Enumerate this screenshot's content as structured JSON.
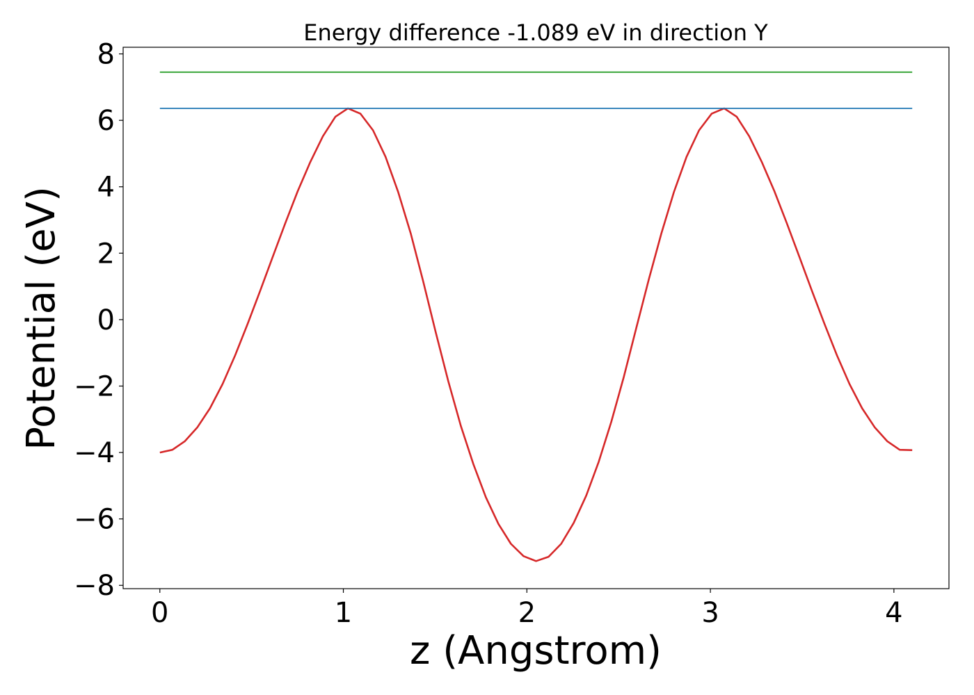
{
  "chart_data": {
    "type": "line",
    "title": "Energy difference -1.089 eV in direction Y",
    "xlabel": "z (Angstrom)",
    "ylabel": "Potential (eV)",
    "xlim": [
      -0.2,
      4.3
    ],
    "ylim": [
      -8.1,
      8.2
    ],
    "xticks": [
      0,
      1,
      2,
      3,
      4
    ],
    "yticks": [
      -8,
      -6,
      -4,
      -2,
      0,
      2,
      4,
      6,
      8
    ],
    "xtick_labels": [
      "0",
      "1",
      "2",
      "3",
      "4"
    ],
    "ytick_labels": [
      "−8",
      "−6",
      "−4",
      "−2",
      "0",
      "2",
      "4",
      "6",
      "8"
    ],
    "grid": false,
    "colors": {
      "potential": "#d62728",
      "barrier_max": "#1f77b4",
      "upper_level": "#2ca02c"
    },
    "series": [
      {
        "key": "potential",
        "x": [
          0.0,
          0.0683,
          0.1367,
          0.205,
          0.2733,
          0.3417,
          0.41,
          0.4783,
          0.5467,
          0.615,
          0.6833,
          0.7517,
          0.82,
          0.8883,
          0.9567,
          1.025,
          1.0933,
          1.1617,
          1.23,
          1.2983,
          1.3667,
          1.435,
          1.5033,
          1.5717,
          1.64,
          1.7083,
          1.7767,
          1.845,
          1.9133,
          1.9817,
          2.05,
          2.1183,
          2.1867,
          2.255,
          2.3233,
          2.3917,
          2.46,
          2.5283,
          2.5967,
          2.665,
          2.7333,
          2.8017,
          2.87,
          2.9383,
          3.0067,
          3.075,
          3.1433,
          3.2117,
          3.28,
          3.3483,
          3.4167,
          3.485,
          3.5533,
          3.6217,
          3.69,
          3.7583,
          3.8267,
          3.895,
          3.9633,
          4.0317,
          4.1
        ],
        "y": [
          -4.0,
          -3.92,
          -3.66,
          -3.24,
          -2.67,
          -1.94,
          -1.08,
          -0.13,
          0.87,
          1.89,
          2.9,
          3.87,
          4.75,
          5.52,
          6.11,
          6.36,
          6.2,
          5.7,
          4.9,
          3.85,
          2.6,
          1.15,
          -0.38,
          -1.85,
          -3.2,
          -4.35,
          -5.35,
          -6.15,
          -6.75,
          -7.12,
          -7.27,
          -7.14,
          -6.75,
          -6.12,
          -5.3,
          -4.28,
          -3.08,
          -1.72,
          -0.24,
          1.22,
          2.6,
          3.85,
          4.9,
          5.7,
          6.2,
          6.36,
          6.11,
          5.52,
          4.75,
          3.87,
          2.9,
          1.89,
          0.87,
          -0.13,
          -1.08,
          -1.94,
          -2.67,
          -3.24,
          -3.66,
          -3.92,
          -3.93
        ]
      },
      {
        "key": "barrier_max",
        "x": [
          0.0,
          4.1
        ],
        "y": [
          6.36,
          6.36
        ]
      },
      {
        "key": "upper_level",
        "x": [
          0.0,
          4.1
        ],
        "y": [
          7.45,
          7.45
        ]
      }
    ]
  }
}
